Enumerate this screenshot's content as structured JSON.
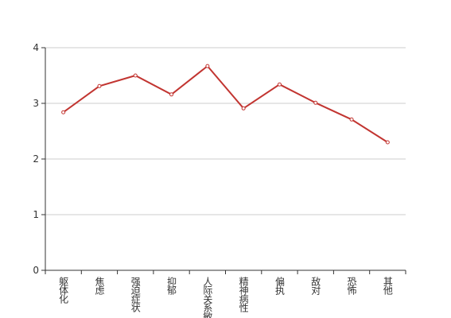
{
  "chart_data": {
    "type": "line",
    "categories": [
      "躯体化",
      "焦虑",
      "强迫症状",
      "抑郁",
      "人际关系敏感",
      "精神病性",
      "偏执",
      "敌对",
      "恐怖",
      "其他"
    ],
    "series": [
      {
        "color": "#c23531",
        "values": [
          2.84,
          3.31,
          3.5,
          3.16,
          3.67,
          2.91,
          3.34,
          3.01,
          2.71,
          2.3
        ]
      }
    ],
    "ylim": [
      0,
      4
    ],
    "yticks": [
      0,
      1,
      2,
      3,
      4
    ],
    "grid": true
  }
}
